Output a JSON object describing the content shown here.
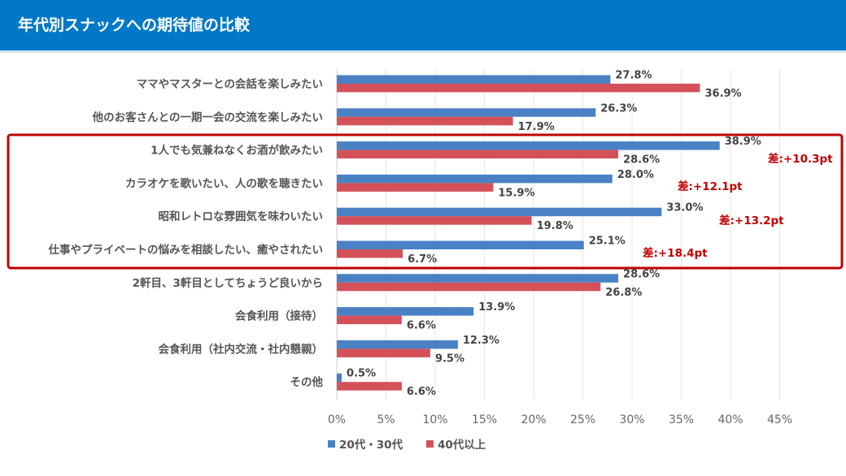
{
  "header": {
    "title": "年代別スナックへの期待値の比較"
  },
  "chart_data": {
    "type": "bar",
    "orientation": "horizontal",
    "title": "年代別スナックへの期待値の比較",
    "categories": [
      "ママやマスターとの会話を楽しみたい",
      "他のお客さんとの一期一会の交流を楽しみたい",
      "1人でも気兼ねなくお酒が飲みたい",
      "カラオケを歌いたい、人の歌を聴きたい",
      "昭和レトロな雰囲気を味わいたい",
      "仕事やプライベートの悩みを相談したい、癒やされたい",
      "2軒目、3軒目としてちょうど良いから",
      "会食利用（接待）",
      "会食利用（社内交流・社内懇親）",
      "その他"
    ],
    "series": [
      {
        "name": "20代・30代",
        "color": "#4a81c4",
        "values": [
          27.8,
          26.3,
          38.9,
          28.0,
          33.0,
          25.1,
          28.6,
          13.9,
          12.3,
          0.5
        ]
      },
      {
        "name": "40代以上",
        "color": "#d4515a",
        "values": [
          36.9,
          17.9,
          28.6,
          15.9,
          19.8,
          6.7,
          26.8,
          6.6,
          9.5,
          6.6
        ]
      }
    ],
    "xlim": [
      0,
      45
    ],
    "xticks": [
      "0%",
      "5%",
      "10%",
      "15%",
      "20%",
      "25%",
      "30%",
      "35%",
      "40%",
      "45%"
    ],
    "grid": true,
    "legend": "bottom",
    "annotations": [
      "差:+10.3pt",
      "差:+12.1pt",
      "差:+13.2pt",
      "差:+18.4pt"
    ],
    "highlight_box_color": "#c00000"
  }
}
